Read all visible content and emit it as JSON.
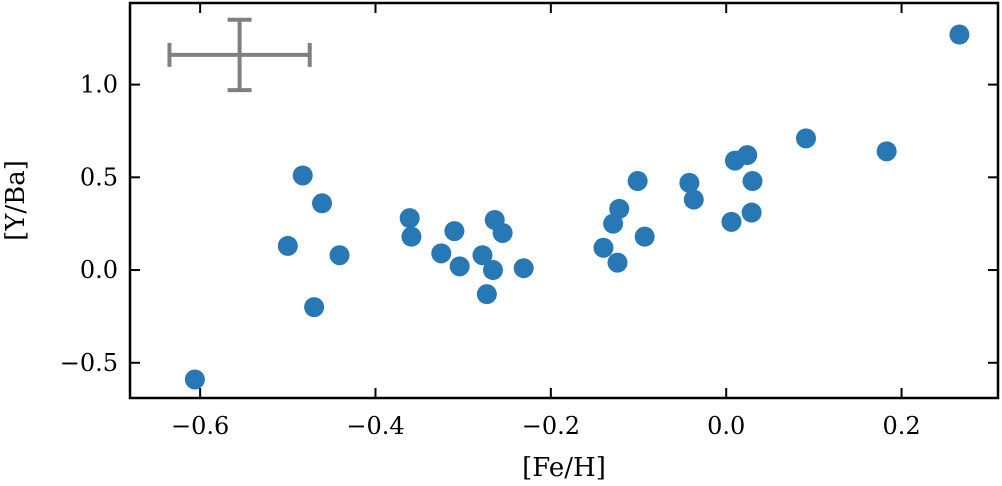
{
  "chart_data": {
    "type": "scatter",
    "xlabel": "[Fe/H]",
    "ylabel": "[Y/Ba]",
    "xlim": [
      -0.68,
      0.31
    ],
    "ylim": [
      -0.69,
      1.44
    ],
    "xticks": [
      -0.6,
      -0.4,
      -0.2,
      0.0,
      0.2
    ],
    "xtick_labels": [
      "−0.6",
      "−0.4",
      "−0.2",
      "0.0",
      "0.2"
    ],
    "yticks": [
      -0.5,
      0.0,
      0.5,
      1.0
    ],
    "ytick_labels": [
      "−0.5",
      "0.0",
      "0.5",
      "1.0"
    ],
    "grid": false,
    "point_color": "#2878b5",
    "errorbar_color": "#808080",
    "series": [
      {
        "points": [
          {
            "x": -0.606,
            "y": -0.59
          },
          {
            "x": -0.5,
            "y": 0.13
          },
          {
            "x": -0.483,
            "y": 0.51
          },
          {
            "x": -0.47,
            "y": -0.2
          },
          {
            "x": -0.461,
            "y": 0.36
          },
          {
            "x": -0.441,
            "y": 0.08
          },
          {
            "x": -0.361,
            "y": 0.28
          },
          {
            "x": -0.359,
            "y": 0.18
          },
          {
            "x": -0.325,
            "y": 0.09
          },
          {
            "x": -0.31,
            "y": 0.21
          },
          {
            "x": -0.304,
            "y": 0.02
          },
          {
            "x": -0.278,
            "y": 0.08
          },
          {
            "x": -0.273,
            "y": -0.13
          },
          {
            "x": -0.266,
            "y": 0.0
          },
          {
            "x": -0.264,
            "y": 0.27
          },
          {
            "x": -0.255,
            "y": 0.2
          },
          {
            "x": -0.231,
            "y": 0.01
          },
          {
            "x": -0.14,
            "y": 0.12
          },
          {
            "x": -0.129,
            "y": 0.25
          },
          {
            "x": -0.124,
            "y": 0.04
          },
          {
            "x": -0.122,
            "y": 0.33
          },
          {
            "x": -0.101,
            "y": 0.48
          },
          {
            "x": -0.093,
            "y": 0.18
          },
          {
            "x": -0.042,
            "y": 0.47
          },
          {
            "x": -0.037,
            "y": 0.38
          },
          {
            "x": 0.006,
            "y": 0.26
          },
          {
            "x": 0.01,
            "y": 0.59
          },
          {
            "x": 0.024,
            "y": 0.62
          },
          {
            "x": 0.029,
            "y": 0.31
          },
          {
            "x": 0.03,
            "y": 0.48
          },
          {
            "x": 0.091,
            "y": 0.71
          },
          {
            "x": 0.183,
            "y": 0.64
          },
          {
            "x": 0.266,
            "y": 1.27
          }
        ]
      }
    ],
    "typical_error": {
      "x": -0.555,
      "y": 1.16,
      "xerr": 0.08,
      "yerr": 0.19
    }
  }
}
